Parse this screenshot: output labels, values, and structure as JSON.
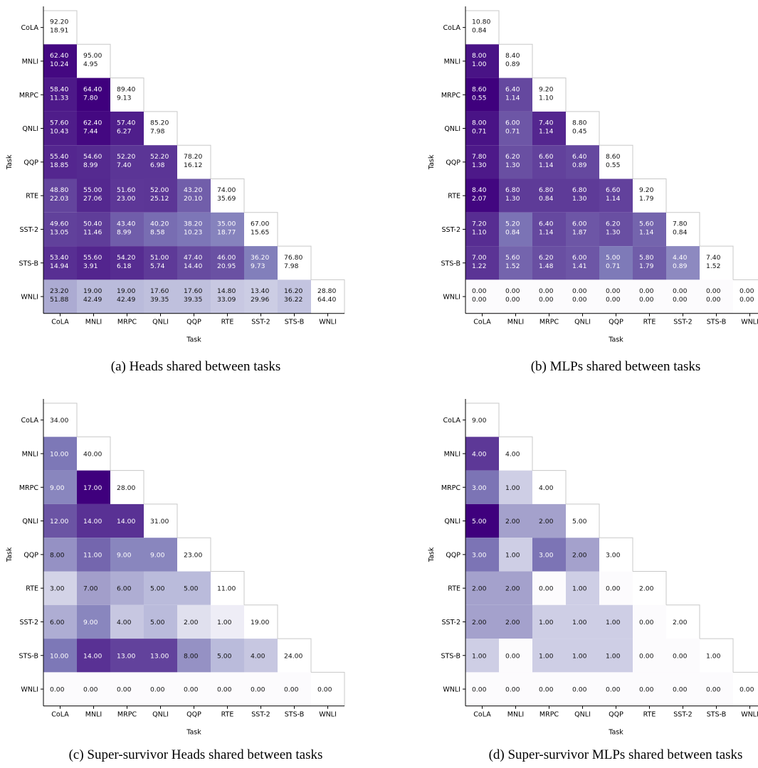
{
  "tasks": [
    "CoLA",
    "MNLI",
    "MRPC",
    "QNLI",
    "QQP",
    "RTE",
    "SST-2",
    "STS-B",
    "WNLI"
  ],
  "axis_label": "Task",
  "captions": {
    "a": "(a) Heads shared between tasks",
    "b": "(b) MLPs shared between tasks",
    "c": "(c) Super-survivor Heads shared between tasks",
    "d": "(d) Super-survivor MLPs shared between tasks"
  },
  "chart_data": [
    {
      "type": "heatmap",
      "caption": "(a) Heads shared between tasks",
      "xlabel": "Task",
      "ylabel": "Task",
      "categories": [
        "CoLA",
        "MNLI",
        "MRPC",
        "QNLI",
        "QQP",
        "RTE",
        "SST-2",
        "STS-B",
        "WNLI"
      ],
      "cells": [
        [
          [
            "92.20",
            "18.91"
          ]
        ],
        [
          [
            "62.40",
            "10.24"
          ],
          [
            "95.00",
            "4.95"
          ]
        ],
        [
          [
            "58.40",
            "11.33"
          ],
          [
            "64.40",
            "7.80"
          ],
          [
            "89.40",
            "9.13"
          ]
        ],
        [
          [
            "57.60",
            "10.43"
          ],
          [
            "62.40",
            "7.44"
          ],
          [
            "57.40",
            "6.27"
          ],
          [
            "85.20",
            "7.98"
          ]
        ],
        [
          [
            "55.40",
            "18.85"
          ],
          [
            "54.60",
            "8.99"
          ],
          [
            "52.20",
            "7.40"
          ],
          [
            "52.20",
            "6.98"
          ],
          [
            "78.20",
            "16.12"
          ]
        ],
        [
          [
            "48.80",
            "22.03"
          ],
          [
            "55.00",
            "27.06"
          ],
          [
            "51.60",
            "23.00"
          ],
          [
            "52.00",
            "25.12"
          ],
          [
            "43.20",
            "20.10"
          ],
          [
            "74.00",
            "35.69"
          ]
        ],
        [
          [
            "49.60",
            "13.05"
          ],
          [
            "50.40",
            "11.46"
          ],
          [
            "43.40",
            "8.99"
          ],
          [
            "40.20",
            "8.58"
          ],
          [
            "38.20",
            "10.23"
          ],
          [
            "35.00",
            "18.77"
          ],
          [
            "67.00",
            "15.65"
          ]
        ],
        [
          [
            "53.40",
            "14.94"
          ],
          [
            "55.60",
            "3.91"
          ],
          [
            "54.20",
            "6.18"
          ],
          [
            "51.00",
            "5.74"
          ],
          [
            "47.40",
            "14.40"
          ],
          [
            "46.00",
            "20.95"
          ],
          [
            "36.20",
            "9.73"
          ],
          [
            "76.80",
            "7.98"
          ]
        ],
        [
          [
            "23.20",
            "51.88"
          ],
          [
            "19.00",
            "42.49"
          ],
          [
            "19.00",
            "42.49"
          ],
          [
            "17.60",
            "39.35"
          ],
          [
            "17.60",
            "39.35"
          ],
          [
            "14.80",
            "33.09"
          ],
          [
            "13.40",
            "29.96"
          ],
          [
            "16.20",
            "36.22"
          ],
          [
            "28.80",
            "64.40"
          ]
        ]
      ]
    },
    {
      "type": "heatmap",
      "caption": "(b) MLPs shared between tasks",
      "xlabel": "Task",
      "ylabel": "Task",
      "categories": [
        "CoLA",
        "MNLI",
        "MRPC",
        "QNLI",
        "QQP",
        "RTE",
        "SST-2",
        "STS-B",
        "WNLI"
      ],
      "cells": [
        [
          [
            "10.80",
            "0.84"
          ]
        ],
        [
          [
            "8.00",
            "1.00"
          ],
          [
            "8.40",
            "0.89"
          ]
        ],
        [
          [
            "8.60",
            "0.55"
          ],
          [
            "6.40",
            "1.14"
          ],
          [
            "9.20",
            "1.10"
          ]
        ],
        [
          [
            "8.00",
            "0.71"
          ],
          [
            "6.00",
            "0.71"
          ],
          [
            "7.40",
            "1.14"
          ],
          [
            "8.80",
            "0.45"
          ]
        ],
        [
          [
            "7.80",
            "1.30"
          ],
          [
            "6.20",
            "1.30"
          ],
          [
            "6.60",
            "1.14"
          ],
          [
            "6.40",
            "0.89"
          ],
          [
            "8.60",
            "0.55"
          ]
        ],
        [
          [
            "8.40",
            "2.07"
          ],
          [
            "6.80",
            "1.30"
          ],
          [
            "6.80",
            "0.84"
          ],
          [
            "6.80",
            "1.30"
          ],
          [
            "6.60",
            "1.14"
          ],
          [
            "9.20",
            "1.79"
          ]
        ],
        [
          [
            "7.20",
            "1.10"
          ],
          [
            "5.20",
            "0.84"
          ],
          [
            "6.40",
            "1.14"
          ],
          [
            "6.00",
            "1.87"
          ],
          [
            "6.20",
            "1.30"
          ],
          [
            "5.60",
            "1.14"
          ],
          [
            "7.80",
            "0.84"
          ]
        ],
        [
          [
            "7.00",
            "1.22"
          ],
          [
            "5.60",
            "1.52"
          ],
          [
            "6.20",
            "1.48"
          ],
          [
            "6.00",
            "1.41"
          ],
          [
            "5.00",
            "0.71"
          ],
          [
            "5.80",
            "1.79"
          ],
          [
            "4.40",
            "0.89"
          ],
          [
            "7.40",
            "1.52"
          ]
        ],
        [
          [
            "0.00",
            "0.00"
          ],
          [
            "0.00",
            "0.00"
          ],
          [
            "0.00",
            "0.00"
          ],
          [
            "0.00",
            "0.00"
          ],
          [
            "0.00",
            "0.00"
          ],
          [
            "0.00",
            "0.00"
          ],
          [
            "0.00",
            "0.00"
          ],
          [
            "0.00",
            "0.00"
          ],
          [
            "0.00",
            "0.00"
          ]
        ]
      ]
    },
    {
      "type": "heatmap",
      "caption": "(c) Super-survivor Heads shared between tasks",
      "xlabel": "Task",
      "ylabel": "Task",
      "categories": [
        "CoLA",
        "MNLI",
        "MRPC",
        "QNLI",
        "QQP",
        "RTE",
        "SST-2",
        "STS-B",
        "WNLI"
      ],
      "cells": [
        [
          [
            "34.00"
          ]
        ],
        [
          [
            "10.00"
          ],
          [
            "40.00"
          ]
        ],
        [
          [
            "9.00"
          ],
          [
            "17.00"
          ],
          [
            "28.00"
          ]
        ],
        [
          [
            "12.00"
          ],
          [
            "14.00"
          ],
          [
            "14.00"
          ],
          [
            "31.00"
          ]
        ],
        [
          [
            "8.00"
          ],
          [
            "11.00"
          ],
          [
            "9.00"
          ],
          [
            "9.00"
          ],
          [
            "23.00"
          ]
        ],
        [
          [
            "3.00"
          ],
          [
            "7.00"
          ],
          [
            "6.00"
          ],
          [
            "5.00"
          ],
          [
            "5.00"
          ],
          [
            "11.00"
          ]
        ],
        [
          [
            "6.00"
          ],
          [
            "9.00"
          ],
          [
            "4.00"
          ],
          [
            "5.00"
          ],
          [
            "2.00"
          ],
          [
            "1.00"
          ],
          [
            "19.00"
          ]
        ],
        [
          [
            "10.00"
          ],
          [
            "14.00"
          ],
          [
            "13.00"
          ],
          [
            "13.00"
          ],
          [
            "8.00"
          ],
          [
            "5.00"
          ],
          [
            "4.00"
          ],
          [
            "24.00"
          ]
        ],
        [
          [
            "0.00"
          ],
          [
            "0.00"
          ],
          [
            "0.00"
          ],
          [
            "0.00"
          ],
          [
            "0.00"
          ],
          [
            "0.00"
          ],
          [
            "0.00"
          ],
          [
            "0.00"
          ],
          [
            "0.00"
          ]
        ]
      ]
    },
    {
      "type": "heatmap",
      "caption": "(d) Super-survivor MLPs shared between tasks",
      "xlabel": "Task",
      "ylabel": "Task",
      "categories": [
        "CoLA",
        "MNLI",
        "MRPC",
        "QNLI",
        "QQP",
        "RTE",
        "SST-2",
        "STS-B",
        "WNLI"
      ],
      "cells": [
        [
          [
            "9.00"
          ]
        ],
        [
          [
            "4.00"
          ],
          [
            "4.00"
          ]
        ],
        [
          [
            "3.00"
          ],
          [
            "1.00"
          ],
          [
            "4.00"
          ]
        ],
        [
          [
            "5.00"
          ],
          [
            "2.00"
          ],
          [
            "2.00"
          ],
          [
            "5.00"
          ]
        ],
        [
          [
            "3.00"
          ],
          [
            "1.00"
          ],
          [
            "3.00"
          ],
          [
            "2.00"
          ],
          [
            "3.00"
          ]
        ],
        [
          [
            "2.00"
          ],
          [
            "2.00"
          ],
          [
            "0.00"
          ],
          [
            "1.00"
          ],
          [
            "0.00"
          ],
          [
            "2.00"
          ]
        ],
        [
          [
            "2.00"
          ],
          [
            "2.00"
          ],
          [
            "1.00"
          ],
          [
            "1.00"
          ],
          [
            "1.00"
          ],
          [
            "0.00"
          ],
          [
            "2.00"
          ]
        ],
        [
          [
            "1.00"
          ],
          [
            "0.00"
          ],
          [
            "1.00"
          ],
          [
            "1.00"
          ],
          [
            "1.00"
          ],
          [
            "0.00"
          ],
          [
            "0.00"
          ],
          [
            "1.00"
          ]
        ],
        [
          [
            "0.00"
          ],
          [
            "0.00"
          ],
          [
            "0.00"
          ],
          [
            "0.00"
          ],
          [
            "0.00"
          ],
          [
            "0.00"
          ],
          [
            "0.00"
          ],
          [
            "0.00"
          ],
          [
            "0.00"
          ]
        ]
      ]
    }
  ]
}
